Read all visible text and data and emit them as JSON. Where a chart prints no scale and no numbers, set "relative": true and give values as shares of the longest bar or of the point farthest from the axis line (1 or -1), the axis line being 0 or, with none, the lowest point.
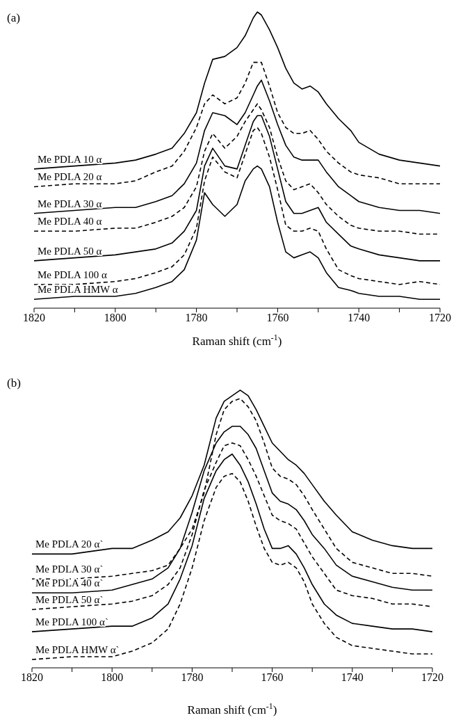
{
  "chart_data": [
    {
      "type": "line",
      "title": "(a)",
      "xlabel": "Raman shift (cm$^{-1}$)",
      "relative": true,
      "marker": "none",
      "xlim": [
        1820,
        1720
      ],
      "xticks": [
        1820,
        {
          "value": 1810,
          "label": null
        },
        1800,
        {
          "value": 1790,
          "label": null
        },
        1780,
        {
          "value": 1770,
          "label": null
        },
        1760,
        {
          "value": 1750,
          "label": null
        },
        1740,
        {
          "value": 1730,
          "label": null
        },
        1720
      ],
      "x": [
        1820,
        1810,
        1800,
        1795,
        1790,
        1786,
        1783,
        1780,
        1778,
        1776,
        1773,
        1770,
        1768,
        1766,
        1765,
        1764,
        1762,
        1760,
        1758,
        1756,
        1754,
        1752,
        1750,
        1748,
        1745,
        1742,
        1740,
        1735,
        1730,
        1725,
        1720
      ],
      "series": [
        {
          "name": "Me PDLA 10 α",
          "color": "#000000",
          "line_style": "solid",
          "values": [
            0.47,
            0.48,
            0.49,
            0.5,
            0.52,
            0.54,
            0.59,
            0.66,
            0.76,
            0.84,
            0.85,
            0.88,
            0.92,
            0.98,
            1.0,
            0.99,
            0.94,
            0.88,
            0.81,
            0.76,
            0.74,
            0.75,
            0.73,
            0.69,
            0.64,
            0.6,
            0.56,
            0.52,
            0.5,
            0.49,
            0.48
          ]
        },
        {
          "name": "Me PDLA 20 α",
          "color": "#000000",
          "line_style": "dashed",
          "values": [
            0.41,
            0.42,
            0.42,
            0.43,
            0.46,
            0.48,
            0.53,
            0.61,
            0.69,
            0.72,
            0.69,
            0.71,
            0.76,
            0.83,
            0.83,
            0.83,
            0.75,
            0.66,
            0.61,
            0.59,
            0.59,
            0.6,
            0.57,
            0.53,
            0.49,
            0.46,
            0.45,
            0.44,
            0.42,
            0.42,
            0.42
          ]
        },
        {
          "name": "Me PDLA 30 α",
          "color": "#000000",
          "line_style": "solid",
          "values": [
            0.32,
            0.33,
            0.34,
            0.34,
            0.36,
            0.38,
            0.42,
            0.49,
            0.6,
            0.66,
            0.65,
            0.62,
            0.66,
            0.72,
            0.75,
            0.77,
            0.7,
            0.62,
            0.55,
            0.51,
            0.5,
            0.5,
            0.5,
            0.46,
            0.41,
            0.38,
            0.36,
            0.34,
            0.33,
            0.33,
            0.32
          ]
        },
        {
          "name": "Me PDLA 40 α",
          "color": "#000000",
          "line_style": "dashed",
          "values": [
            0.26,
            0.26,
            0.27,
            0.27,
            0.29,
            0.31,
            0.34,
            0.41,
            0.53,
            0.59,
            0.54,
            0.58,
            0.63,
            0.67,
            0.69,
            0.67,
            0.61,
            0.51,
            0.43,
            0.4,
            0.41,
            0.42,
            0.39,
            0.35,
            0.31,
            0.28,
            0.27,
            0.26,
            0.26,
            0.25,
            0.25
          ]
        },
        {
          "name": "Me PDLA 50 α",
          "color": "#000000",
          "line_style": "solid",
          "values": [
            0.16,
            0.17,
            0.18,
            0.19,
            0.2,
            0.22,
            0.26,
            0.33,
            0.48,
            0.54,
            0.48,
            0.47,
            0.55,
            0.63,
            0.65,
            0.65,
            0.58,
            0.47,
            0.36,
            0.32,
            0.32,
            0.33,
            0.34,
            0.29,
            0.25,
            0.21,
            0.2,
            0.18,
            0.17,
            0.16,
            0.16
          ]
        },
        {
          "name": "Me PDLA 100 α",
          "color": "#000000",
          "line_style": "dashed",
          "values": [
            0.08,
            0.08,
            0.09,
            0.1,
            0.12,
            0.14,
            0.18,
            0.27,
            0.43,
            0.51,
            0.46,
            0.44,
            0.52,
            0.6,
            0.61,
            0.59,
            0.51,
            0.4,
            0.28,
            0.26,
            0.26,
            0.27,
            0.26,
            0.2,
            0.13,
            0.11,
            0.1,
            0.09,
            0.08,
            0.09,
            0.08
          ]
        },
        {
          "name": "Me PDLA HMW α",
          "color": "#000000",
          "line_style": "solid",
          "values": [
            0.03,
            0.04,
            0.04,
            0.05,
            0.07,
            0.09,
            0.13,
            0.23,
            0.39,
            0.35,
            0.31,
            0.35,
            0.43,
            0.47,
            0.48,
            0.47,
            0.41,
            0.29,
            0.19,
            0.17,
            0.18,
            0.19,
            0.17,
            0.12,
            0.07,
            0.06,
            0.05,
            0.04,
            0.04,
            0.03,
            0.03
          ]
        }
      ]
    },
    {
      "type": "line",
      "title": "(b)",
      "xlabel": "Raman shift (cm$^{-1}$)",
      "relative": true,
      "marker": "none",
      "xlim": [
        1820,
        1720
      ],
      "xticks": [
        1820,
        {
          "value": 1810,
          "label": null
        },
        1800,
        {
          "value": 1790,
          "label": null
        },
        1780,
        {
          "value": 1770,
          "label": null
        },
        1760,
        {
          "value": 1750,
          "label": null
        },
        1740,
        {
          "value": 1730,
          "label": null
        },
        1720
      ],
      "x": [
        1820,
        1810,
        1800,
        1795,
        1790,
        1786,
        1783,
        1780,
        1777,
        1774,
        1772,
        1770,
        1768,
        1766,
        1764,
        1762,
        1760,
        1758,
        1756,
        1754,
        1752,
        1750,
        1747,
        1744,
        1740,
        1735,
        1730,
        1725,
        1720
      ],
      "series": [
        {
          "name": "Me PDLA 20 α`",
          "color": "#000000",
          "line_style": "solid",
          "values": [
            0.41,
            0.41,
            0.43,
            0.43,
            0.46,
            0.49,
            0.54,
            0.62,
            0.73,
            0.9,
            0.96,
            0.98,
            1.0,
            0.98,
            0.93,
            0.87,
            0.81,
            0.78,
            0.75,
            0.73,
            0.7,
            0.66,
            0.6,
            0.55,
            0.49,
            0.46,
            0.44,
            0.43,
            0.43
          ]
        },
        {
          "name": "Me PDLA 30 α`",
          "color": "#000000",
          "line_style": "dashed",
          "values": [
            0.32,
            0.32,
            0.33,
            0.34,
            0.35,
            0.37,
            0.43,
            0.5,
            0.63,
            0.84,
            0.93,
            0.96,
            0.97,
            0.94,
            0.89,
            0.81,
            0.72,
            0.69,
            0.68,
            0.66,
            0.62,
            0.57,
            0.5,
            0.43,
            0.38,
            0.36,
            0.34,
            0.34,
            0.33
          ]
        },
        {
          "name": "Me PDLA 40 α`",
          "color": "#000000",
          "line_style": "solid",
          "values": [
            0.27,
            0.27,
            0.28,
            0.3,
            0.32,
            0.36,
            0.43,
            0.56,
            0.71,
            0.81,
            0.85,
            0.87,
            0.87,
            0.84,
            0.79,
            0.71,
            0.63,
            0.6,
            0.59,
            0.57,
            0.53,
            0.48,
            0.43,
            0.37,
            0.33,
            0.31,
            0.29,
            0.28,
            0.28
          ]
        },
        {
          "name": "Me PDLA 50 α`",
          "color": "#000000",
          "line_style": "dashed",
          "values": [
            0.21,
            0.22,
            0.23,
            0.24,
            0.26,
            0.3,
            0.36,
            0.48,
            0.64,
            0.74,
            0.8,
            0.81,
            0.8,
            0.75,
            0.69,
            0.62,
            0.55,
            0.53,
            0.52,
            0.5,
            0.45,
            0.4,
            0.34,
            0.28,
            0.26,
            0.25,
            0.23,
            0.23,
            0.22
          ]
        },
        {
          "name": "Me PDLA 100 α`",
          "color": "#000000",
          "line_style": "solid",
          "values": [
            0.13,
            0.14,
            0.15,
            0.15,
            0.18,
            0.23,
            0.32,
            0.44,
            0.61,
            0.71,
            0.75,
            0.77,
            0.73,
            0.67,
            0.59,
            0.5,
            0.43,
            0.43,
            0.44,
            0.41,
            0.36,
            0.3,
            0.23,
            0.19,
            0.16,
            0.15,
            0.14,
            0.14,
            0.13
          ]
        },
        {
          "name": "Me PDLA HMW α`",
          "color": "#000000",
          "line_style": "dashed",
          "values": [
            0.03,
            0.04,
            0.04,
            0.06,
            0.09,
            0.14,
            0.23,
            0.36,
            0.53,
            0.65,
            0.69,
            0.7,
            0.67,
            0.6,
            0.51,
            0.43,
            0.38,
            0.37,
            0.38,
            0.36,
            0.31,
            0.23,
            0.16,
            0.11,
            0.08,
            0.07,
            0.06,
            0.05,
            0.05
          ]
        }
      ]
    }
  ]
}
